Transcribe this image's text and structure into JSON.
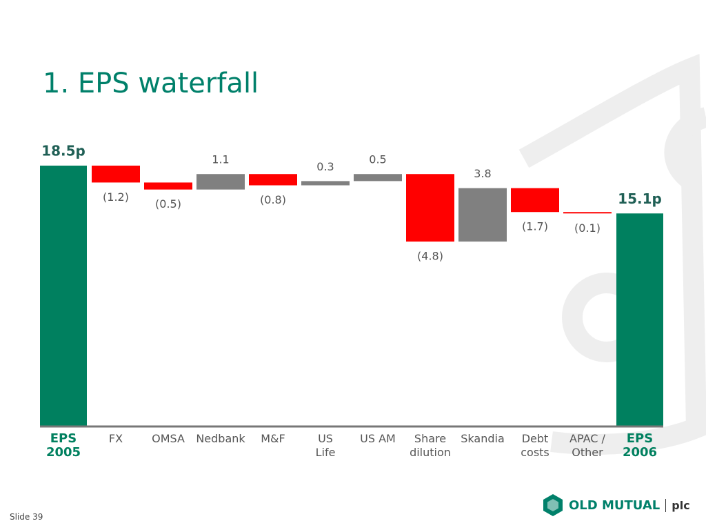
{
  "slide": {
    "footer": "Slide 39",
    "logo_name": "OLD MUTUAL",
    "logo_suffix": "plc"
  },
  "chart_data": {
    "type": "waterfall",
    "title": "1. EPS waterfall",
    "categories": [
      "EPS\n2005",
      "FX",
      "OMSA",
      "Nedbank",
      "M&F",
      "US\nLife",
      "US AM",
      "Share\ndilution",
      "Skandia",
      "Debt\ncosts",
      "APAC /\nOther",
      "EPS\n2006"
    ],
    "values": [
      18.5,
      -1.2,
      -0.5,
      1.1,
      -0.8,
      0.3,
      0.5,
      -4.8,
      3.8,
      -1.7,
      -0.1,
      15.1
    ],
    "value_labels": [
      "18.5p",
      "(1.2)",
      "(0.5)",
      "1.1",
      "(0.8)",
      "0.3",
      "0.5",
      "(4.8)",
      "3.8",
      "(1.7)",
      "(0.1)",
      "15.1p"
    ],
    "ylim": [
      0,
      18.5
    ],
    "total_color": "#00805f",
    "increase_color": "#808080",
    "decrease_color": "#ff0000"
  }
}
